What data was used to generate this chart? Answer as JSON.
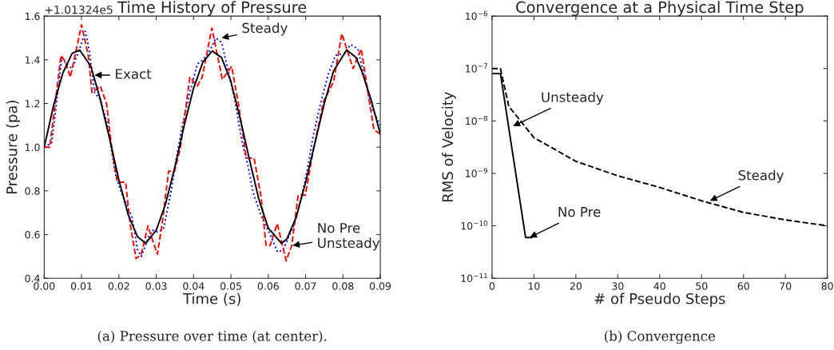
{
  "chart_data": [
    {
      "type": "line",
      "title": "Time History of Pressure",
      "xlabel": "Time (s)",
      "ylabel": "Pressure (pa)",
      "xlim": [
        0,
        0.09
      ],
      "ylim": [
        0.4,
        1.6
      ],
      "xticks": [
        {
          "value": 0,
          "label": "0.00"
        },
        {
          "value": 0.01,
          "label": "0.01"
        },
        {
          "value": 0.02,
          "label": "0.02"
        },
        {
          "value": 0.03,
          "label": "0.03"
        },
        {
          "value": 0.04,
          "label": "0.04"
        },
        {
          "value": 0.05,
          "label": "0.05"
        },
        {
          "value": 0.06,
          "label": "0.06"
        },
        {
          "value": 0.07,
          "label": "0.07"
        },
        {
          "value": 0.08,
          "label": "0.08"
        },
        {
          "value": 0.09,
          "label": "0.09"
        }
      ],
      "yticks": [
        0.4,
        0.6,
        0.8,
        {
          "value": 1,
          "label": "1.0"
        },
        1.2,
        1.4,
        1.6
      ],
      "grid": false,
      "legend": false,
      "series": [
        {
          "color": "#0000ff",
          "line_style": "dotted",
          "x": [
            0,
            0.002,
            0.004,
            0.0047,
            0.006,
            0.0075,
            0.0095,
            0.011,
            0.012,
            0.0135,
            0.015,
            0.017,
            0.019,
            0.0205,
            0.0235,
            0.025,
            0.026,
            0.028,
            0.029,
            0.0305,
            0.032,
            0.034,
            0.0355,
            0.037,
            0.039,
            0.041,
            0.0425,
            0.044,
            0.046,
            0.0475,
            0.049,
            0.051,
            0.053,
            0.0545,
            0.056,
            0.058,
            0.0605,
            0.0625,
            0.064,
            0.0655,
            0.067,
            0.069,
            0.0705,
            0.072,
            0.074,
            0.076,
            0.078,
            0.0805,
            0.082,
            0.084,
            0.086,
            0.088,
            0.09
          ],
          "values": [
            1.0,
            1.02,
            1.3,
            1.41,
            1.38,
            1.36,
            1.45,
            1.53,
            1.45,
            1.25,
            1.22,
            1.1,
            0.88,
            0.8,
            0.68,
            0.53,
            0.5,
            0.59,
            0.62,
            0.61,
            0.63,
            0.8,
            0.96,
            1.1,
            1.25,
            1.38,
            1.4,
            1.43,
            1.5,
            1.48,
            1.37,
            1.22,
            1.02,
            0.92,
            0.79,
            0.69,
            0.6,
            0.52,
            0.53,
            0.59,
            0.65,
            0.78,
            0.9,
            1.05,
            1.2,
            1.33,
            1.42,
            1.43,
            1.47,
            1.45,
            1.3,
            1.17,
            1.1
          ]
        },
        {
          "color": "#ff0000",
          "line_style": "dashed",
          "x": [
            0,
            0.0015,
            0.0045,
            0.0057,
            0.007,
            0.01,
            0.0118,
            0.0128,
            0.015,
            0.0167,
            0.0182,
            0.0196,
            0.0218,
            0.023,
            0.0246,
            0.026,
            0.0278,
            0.0289,
            0.0303,
            0.0316,
            0.0333,
            0.0349,
            0.0365,
            0.039,
            0.041,
            0.0423,
            0.0449,
            0.0477,
            0.0502,
            0.052,
            0.0541,
            0.0562,
            0.0581,
            0.0594,
            0.0605,
            0.0624,
            0.0648,
            0.0663,
            0.068,
            0.0699,
            0.072,
            0.0748,
            0.0775,
            0.0797,
            0.0827,
            0.0849,
            0.0866,
            0.0883,
            0.09
          ],
          "values": [
            1.0,
            1.0,
            1.42,
            1.39,
            1.32,
            1.56,
            1.42,
            1.25,
            1.28,
            1.2,
            0.98,
            0.84,
            0.84,
            0.65,
            0.49,
            0.51,
            0.64,
            0.58,
            0.51,
            0.65,
            0.89,
            0.89,
            1.0,
            1.32,
            1.28,
            1.32,
            1.545,
            1.31,
            1.37,
            1.2,
            0.95,
            0.95,
            0.77,
            0.55,
            0.55,
            0.65,
            0.48,
            0.55,
            0.78,
            0.78,
            0.98,
            1.21,
            1.3,
            1.52,
            1.36,
            1.45,
            1.26,
            1.08,
            1.06
          ]
        },
        {
          "color": "#000000",
          "line_style": "solid",
          "x": [
            0,
            0.0025,
            0.005,
            0.0075,
            0.0095,
            0.0125,
            0.015,
            0.0175,
            0.02,
            0.0225,
            0.025,
            0.0272,
            0.03,
            0.0325,
            0.035,
            0.0375,
            0.04,
            0.0425,
            0.045,
            0.0475,
            0.05,
            0.0525,
            0.055,
            0.0575,
            0.06,
            0.0635,
            0.065,
            0.0675,
            0.07,
            0.0725,
            0.075,
            0.0775,
            0.081,
            0.0835,
            0.085,
            0.0875,
            0.09
          ],
          "values": [
            1.0,
            1.19,
            1.34,
            1.43,
            1.445,
            1.37,
            1.22,
            1.04,
            0.85,
            0.69,
            0.59,
            0.56,
            0.62,
            0.74,
            0.91,
            1.1,
            1.27,
            1.39,
            1.44,
            1.41,
            1.3,
            1.13,
            0.94,
            0.76,
            0.63,
            0.56,
            0.58,
            0.68,
            0.84,
            1.02,
            1.2,
            1.35,
            1.445,
            1.41,
            1.35,
            1.22,
            1.06
          ]
        }
      ],
      "annotations": [
        "+1.01324e5",
        {
          "text": "Exact",
          "x": 0.0135,
          "y": 1.33
        },
        {
          "text": "Steady",
          "x": 0.0475,
          "y": 1.5
        },
        {
          "text": "No Pre\nUnsteady",
          "x": 0.0665,
          "y": 0.55
        },
        "(a) Pressure over time (at center)."
      ]
    },
    {
      "type": "line",
      "title": "Convergence at a Physical Time Step",
      "xlabel": "# of Pseudo Steps",
      "ylabel": "RMS of Velocity",
      "log": "y",
      "xlim": [
        0,
        80
      ],
      "ylim": [
        1e-11,
        1e-06
      ],
      "xticks": [
        0,
        10,
        20,
        30,
        40,
        50,
        60,
        70,
        80
      ],
      "yticks": [
        {
          "value": 1e-11,
          "label": "10$^{−11}$"
        },
        {
          "value": 1e-10,
          "label": "10$^{−10}$"
        },
        {
          "value": 1e-09,
          "label": "10$^{−9}$"
        },
        {
          "value": 1e-08,
          "label": "10$^{−8}$"
        },
        {
          "value": 1e-07,
          "label": "10$^{−7}$"
        },
        {
          "value": 1e-06,
          "label": "10$^{−6}$"
        }
      ],
      "grid": false,
      "legend": false,
      "series": [
        {
          "color": "#000000",
          "line_style": "dashed",
          "x": [
            0,
            2,
            4,
            10,
            20,
            30,
            40,
            50,
            60,
            70,
            80
          ],
          "values": [
            1e-07,
            1e-07,
            1.9e-08,
            4.8e-09,
            1.7e-09,
            9e-10,
            5.4e-10,
            3e-10,
            1.8e-10,
            1.3e-10,
            1e-10
          ]
        },
        {
          "color": "#000000",
          "line_style": "solid",
          "x": [
            0,
            2,
            8,
            9.5
          ],
          "values": [
            8e-08,
            8e-08,
            6e-11,
            6e-11
          ]
        }
      ],
      "annotations": [
        {
          "text": "Unsteady",
          "x": 5,
          "y": 8e-09
        },
        {
          "text": "Steady",
          "x": 52,
          "y": 3e-10
        },
        {
          "text": "No Pre",
          "x": 9,
          "y": 6e-11
        },
        "(b) Convergence"
      ]
    }
  ]
}
